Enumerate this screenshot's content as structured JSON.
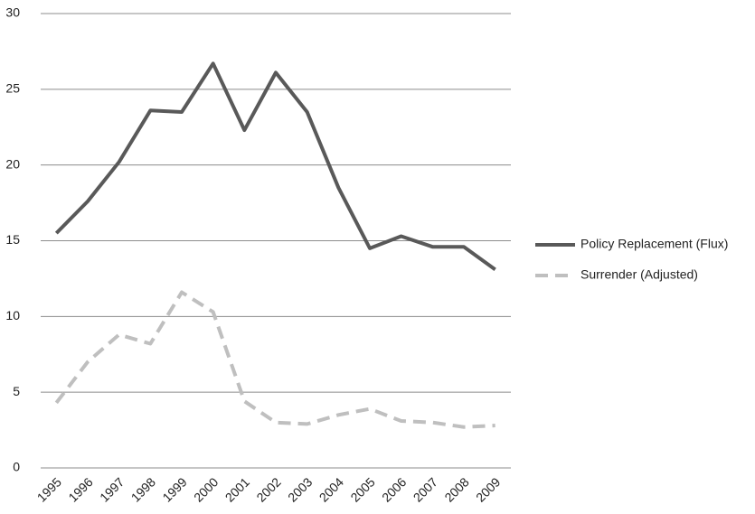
{
  "chart_data": {
    "type": "line",
    "categories": [
      "1995",
      "1996",
      "1997",
      "1998",
      "1999",
      "2000",
      "2001",
      "2002",
      "2003",
      "2004",
      "2005",
      "2006",
      "2007",
      "2008",
      "2009"
    ],
    "series": [
      {
        "name": "Policy Replacement (Flux)",
        "color": "#595959",
        "dashed": false,
        "values": [
          15.5,
          17.6,
          20.2,
          23.6,
          23.5,
          26.7,
          22.3,
          26.1,
          23.5,
          18.5,
          14.5,
          15.3,
          14.6,
          14.6,
          13.1
        ]
      },
      {
        "name": "Surrender (Adjusted)",
        "color": "#bfbfbf",
        "dashed": true,
        "values": [
          4.3,
          7.0,
          8.8,
          8.2,
          11.6,
          10.3,
          4.4,
          3.0,
          2.9,
          3.5,
          3.9,
          3.1,
          3.0,
          2.7,
          2.8
        ]
      }
    ],
    "ylim": [
      0,
      30
    ],
    "yticks": [
      0,
      5,
      10,
      15,
      20,
      25,
      30
    ],
    "grid": true,
    "legend": "right"
  }
}
